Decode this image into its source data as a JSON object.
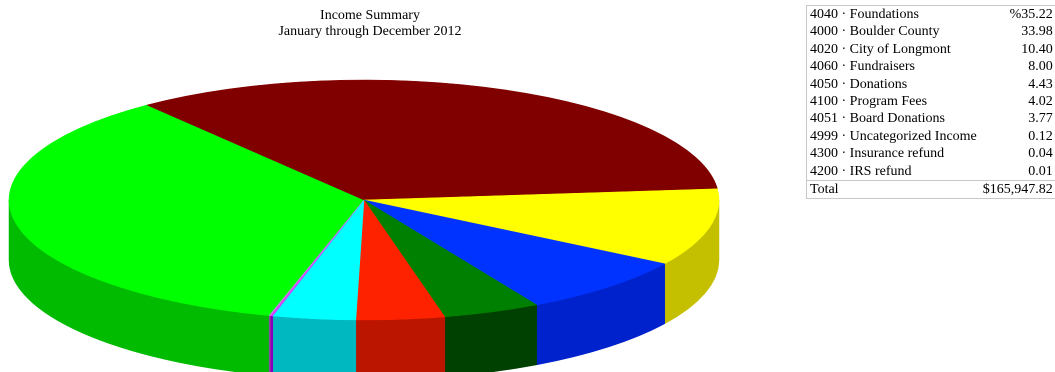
{
  "chart_data": {
    "type": "pie",
    "title": "Income Summary",
    "subtitle": "January through December 2012",
    "slices": [
      {
        "label": "4040 · Foundations",
        "value": 35.22,
        "display": "%35.22",
        "color": "#00ff00",
        "side_color": "#00bb00"
      },
      {
        "label": "4000 · Boulder County",
        "value": 33.98,
        "display": "33.98",
        "color": "#800000",
        "side_color": "#450000"
      },
      {
        "label": "4020 · City of Longmont",
        "value": 10.4,
        "display": "10.40",
        "color": "#ffff00",
        "side_color": "#c4c000"
      },
      {
        "label": "4060 · Fundraisers",
        "value": 8.0,
        "display": "8.00",
        "color": "#0033ff",
        "side_color": "#0022cc"
      },
      {
        "label": "4050 · Donations",
        "value": 4.43,
        "display": "4.43",
        "color": "#008000",
        "side_color": "#004000"
      },
      {
        "label": "4100 · Program Fees",
        "value": 4.02,
        "display": "4.02",
        "color": "#ff2200",
        "side_color": "#bb1500"
      },
      {
        "label": "4051 · Board Donations",
        "value": 3.77,
        "display": "3.77",
        "color": "#00ffff",
        "side_color": "#00b8c0"
      },
      {
        "label": "4999 · Uncategorized Income",
        "value": 0.12,
        "display": "0.12",
        "color": "#cc44ff",
        "side_color": "#8800bb"
      },
      {
        "label": "4300 · Insurance refund",
        "value": 0.04,
        "display": "0.04",
        "color": "#ff66cc",
        "side_color": "#bb3388"
      },
      {
        "label": "4200 · IRS refund",
        "value": 0.01,
        "display": "0.01",
        "color": "#9999ff",
        "side_color": "#6666bb"
      }
    ],
    "total_label": "Total",
    "total_value": "$165,947.82"
  }
}
